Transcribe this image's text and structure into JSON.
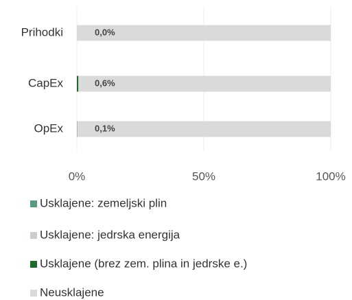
{
  "chart_data": {
    "type": "stacked-bar-horizontal",
    "categories": [
      "Prihodki",
      "CapEx",
      "OpEx"
    ],
    "series": [
      {
        "name": "Usklajene: zemeljski plin",
        "color": "#5b9a7c",
        "values": [
          0,
          0,
          0
        ]
      },
      {
        "name": "Usklajene: jedrska energija",
        "color": "#c9d0c9",
        "values": [
          0,
          0,
          0
        ]
      },
      {
        "name": "Usklajene (brez zem. plina in jedrske e.)",
        "color": "#1d6a2c",
        "values": [
          0,
          0.6,
          0.1
        ],
        "value_labels": [
          "0,0%",
          "0,6%",
          "0,1%"
        ]
      },
      {
        "name": "Neusklajene",
        "color": "#dadada",
        "values": [
          100,
          99.4,
          99.9
        ]
      }
    ],
    "xlim": [
      0,
      100
    ],
    "xticks": [
      {
        "value": 0,
        "label": "0%"
      },
      {
        "value": 50,
        "label": "50%"
      },
      {
        "value": 100,
        "label": "100%"
      }
    ],
    "grid": true
  }
}
